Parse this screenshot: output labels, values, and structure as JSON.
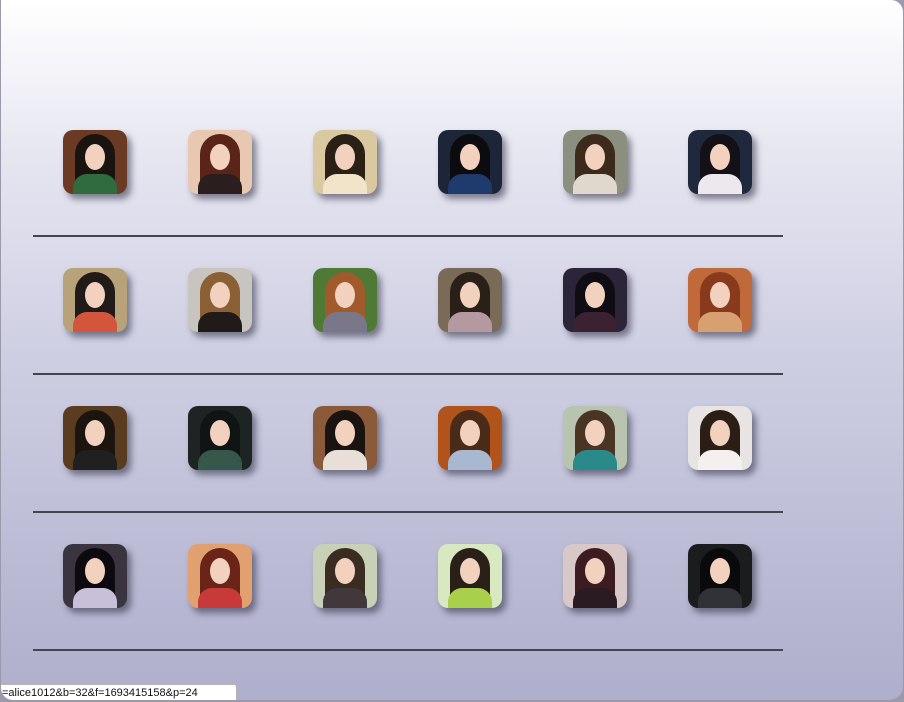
{
  "status_bar": {
    "url_text": "=alice1012&b=32&f=1693415158&p=24"
  },
  "gallery": {
    "rows": [
      {
        "photos": [
          {
            "icon": "profile-photo-icon",
            "bg": "#6b3a24",
            "hair": "#1a1410",
            "clothes": "#2f6b3c"
          },
          {
            "icon": "profile-photo-icon",
            "bg": "#e8c8b0",
            "hair": "#5a2418",
            "clothes": "#2a1e1e"
          },
          {
            "icon": "profile-photo-icon",
            "bg": "#d9c8a0",
            "hair": "#2a2016",
            "clothes": "#f2e4c8"
          },
          {
            "icon": "profile-photo-icon",
            "bg": "#1d2638",
            "hair": "#0c0c10",
            "clothes": "#1f3b6e"
          },
          {
            "icon": "profile-photo-icon",
            "bg": "#8a8f80",
            "hair": "#3c2a1c",
            "clothes": "#e0d8cc"
          },
          {
            "icon": "profile-photo-icon",
            "bg": "#20283e",
            "hair": "#141018",
            "clothes": "#ece8ee"
          }
        ]
      },
      {
        "photos": [
          {
            "icon": "profile-photo-icon",
            "bg": "#b8a27a",
            "hair": "#201a18",
            "clothes": "#d2553c"
          },
          {
            "icon": "profile-photo-icon",
            "bg": "#c8c4c0",
            "hair": "#8a6034",
            "clothes": "#201a18"
          },
          {
            "icon": "profile-photo-icon",
            "bg": "#4e7a36",
            "hair": "#a05a2c",
            "clothes": "#7a7888"
          },
          {
            "icon": "profile-photo-icon",
            "bg": "#7a6a58",
            "hair": "#2a2018",
            "clothes": "#b49aa0"
          },
          {
            "icon": "profile-photo-icon",
            "bg": "#2c2438",
            "hair": "#100c14",
            "clothes": "#3a2232"
          },
          {
            "icon": "profile-photo-icon",
            "bg": "#c06a3c",
            "hair": "#8a3a1c",
            "clothes": "#d8a070"
          }
        ]
      },
      {
        "photos": [
          {
            "icon": "profile-photo-icon",
            "bg": "#5a3c20",
            "hair": "#1c140e",
            "clothes": "#202020"
          },
          {
            "icon": "profile-photo-icon",
            "bg": "#1e2424",
            "hair": "#101414",
            "clothes": "#36584a"
          },
          {
            "icon": "profile-photo-icon",
            "bg": "#8a5a3a",
            "hair": "#1a1410",
            "clothes": "#e8e0d8"
          },
          {
            "icon": "profile-photo-icon",
            "bg": "#b0541c",
            "hair": "#4a2a18",
            "clothes": "#a8b8d0"
          },
          {
            "icon": "profile-photo-icon",
            "bg": "#b8c4b0",
            "hair": "#4a3424",
            "clothes": "#2a8a8a"
          },
          {
            "icon": "profile-photo-icon",
            "bg": "#e8e4e4",
            "hair": "#2a1e16",
            "clothes": "#f4f0f0"
          }
        ]
      },
      {
        "photos": [
          {
            "icon": "profile-photo-icon",
            "bg": "#3a3440",
            "hair": "#0c0a0e",
            "clothes": "#c8c0d8"
          },
          {
            "icon": "profile-photo-icon",
            "bg": "#e0a070",
            "hair": "#6a2418",
            "clothes": "#c83a3a"
          },
          {
            "icon": "profile-photo-icon",
            "bg": "#c8d0b8",
            "hair": "#3a2c20",
            "clothes": "#40383a"
          },
          {
            "icon": "profile-photo-icon",
            "bg": "#d8e8c0",
            "hair": "#2a2018",
            "clothes": "#a8d04a"
          },
          {
            "icon": "profile-photo-icon",
            "bg": "#d8c8c8",
            "hair": "#3c1c20",
            "clothes": "#2a1a22"
          },
          {
            "icon": "profile-photo-icon",
            "bg": "#1a1c1e",
            "hair": "#0a0a0c",
            "clothes": "#303238"
          }
        ]
      }
    ]
  }
}
